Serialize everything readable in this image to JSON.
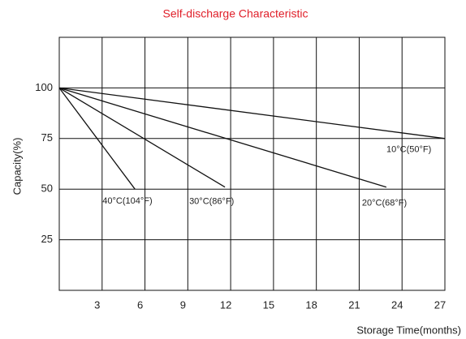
{
  "chart_data": {
    "type": "line",
    "title": "Self-discharge Characteristic",
    "x_label": "Storage  Time(months)",
    "y_label": "Capacity(%)",
    "xlim": [
      0,
      27
    ],
    "ylim": [
      0,
      125
    ],
    "xticks": [
      3,
      6,
      9,
      12,
      15,
      18,
      21,
      24,
      27
    ],
    "yticks": [
      25,
      50,
      75,
      100
    ],
    "grid": true,
    "series": [
      {
        "name": "40°C(104°F)",
        "color": "#111111",
        "x": [
          0,
          5.3
        ],
        "values": [
          100,
          50
        ]
      },
      {
        "name": "30°C(86°F)",
        "color": "#111111",
        "x": [
          0,
          11.6
        ],
        "values": [
          100,
          51
        ]
      },
      {
        "name": "20°C(68°F)",
        "color": "#111111",
        "x": [
          0,
          22.9
        ],
        "values": [
          100,
          51
        ]
      },
      {
        "name": "10°C(50°F)",
        "color": "#111111",
        "x": [
          0,
          27
        ],
        "values": [
          100,
          75
        ]
      }
    ]
  }
}
